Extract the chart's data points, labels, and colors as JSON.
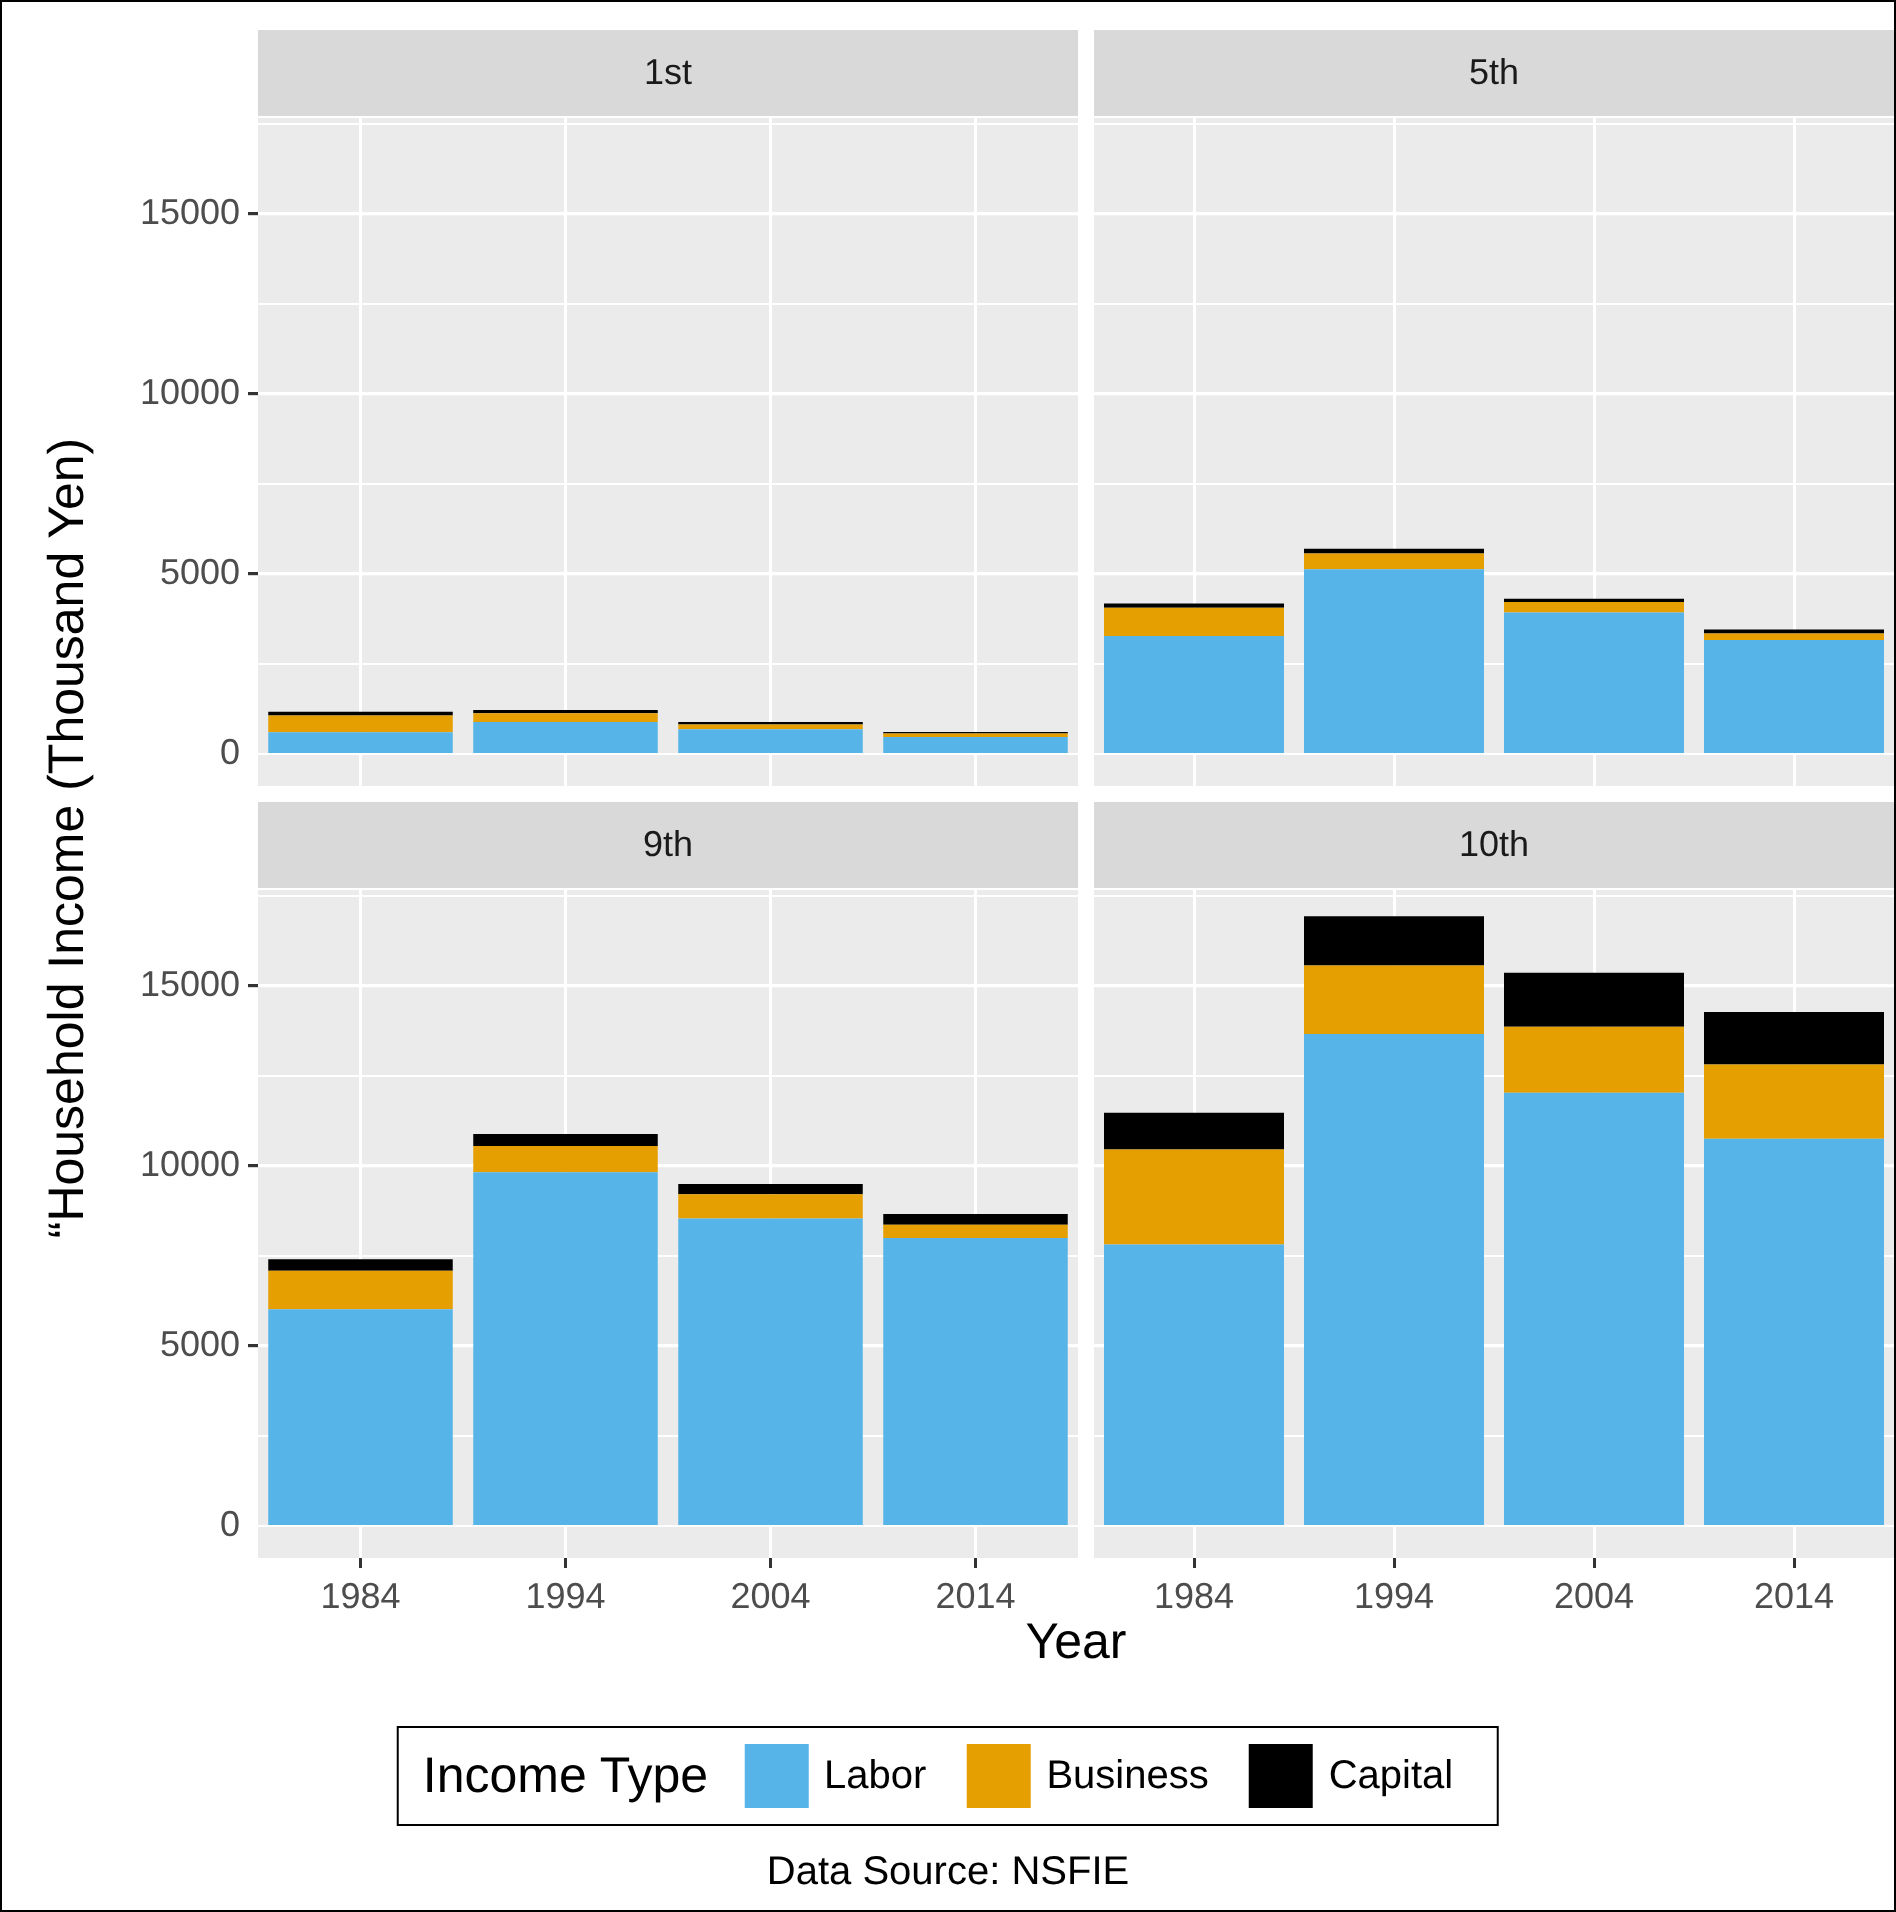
{
  "chart_data": [
    {
      "type": "bar",
      "title": "1st",
      "stacked": true,
      "categories": [
        "1984",
        "1994",
        "2004",
        "2014"
      ],
      "ylim": [
        -890,
        17670
      ],
      "yticks": [
        0,
        {
          "value": 2500,
          "label": null
        },
        5000,
        {
          "value": 7500,
          "label": null
        },
        10000,
        {
          "value": 12500,
          "label": null
        },
        15000,
        {
          "value": 17500,
          "label": null
        }
      ],
      "grid": true,
      "tick_labels": "y",
      "ylabel": "“Household Income (Thousand Yen)",
      "xlabel": "Year",
      "legend": "bottom",
      "legend_title": "Income Type",
      "annotations": [
        "Data Source: NSFIE"
      ],
      "series": [
        {
          "name": "Labor",
          "color": "#56b4e9",
          "values": [
            600,
            890,
            690,
            470
          ]
        },
        {
          "name": "Business",
          "color": "#e69f00",
          "values": [
            470,
            240,
            130,
            100
          ]
        },
        {
          "name": "Capital",
          "color": "#000000",
          "values": [
            100,
            90,
            70,
            40
          ]
        }
      ]
    },
    {
      "type": "bar",
      "title": "5th",
      "stacked": true,
      "categories": [
        "1984",
        "1994",
        "2004",
        "2014"
      ],
      "ylim": [
        -890,
        17670
      ],
      "yticks": [
        0,
        {
          "value": 2500,
          "label": null
        },
        5000,
        {
          "value": 7500,
          "label": null
        },
        10000,
        {
          "value": 12500,
          "label": null
        },
        15000,
        {
          "value": 17500,
          "label": null
        }
      ],
      "grid": true,
      "tick_labels": false,
      "series": [
        {
          "color": "#56b4e9",
          "values": [
            3280,
            5130,
            3930,
            3170
          ]
        },
        {
          "color": "#e69f00",
          "values": [
            780,
            440,
            290,
            180
          ]
        },
        {
          "color": "#000000",
          "values": [
            120,
            130,
            90,
            110
          ]
        }
      ]
    },
    {
      "type": "bar",
      "title": "9th",
      "stacked": true,
      "categories": [
        "1984",
        "1994",
        "2004",
        "2014"
      ],
      "ylim": [
        -890,
        17670
      ],
      "yticks": [
        0,
        {
          "value": 2500,
          "label": null
        },
        5000,
        {
          "value": 7500,
          "label": null
        },
        10000,
        {
          "value": 12500,
          "label": null
        },
        15000,
        {
          "value": 17500,
          "label": null
        }
      ],
      "grid": true,
      "series": [
        {
          "color": "#56b4e9",
          "values": [
            6020,
            9830,
            8540,
            8000
          ]
        },
        {
          "color": "#e69f00",
          "values": [
            1070,
            730,
            680,
            370
          ]
        },
        {
          "color": "#000000",
          "values": [
            320,
            330,
            280,
            300
          ]
        }
      ]
    },
    {
      "type": "bar",
      "title": "10th",
      "stacked": true,
      "categories": [
        "1984",
        "1994",
        "2004",
        "2014"
      ],
      "ylim": [
        -890,
        17670
      ],
      "yticks": [
        0,
        {
          "value": 2500,
          "label": null
        },
        5000,
        {
          "value": 7500,
          "label": null
        },
        10000,
        {
          "value": 12500,
          "label": null
        },
        15000,
        {
          "value": 17500,
          "label": null
        }
      ],
      "grid": true,
      "tick_labels": "x",
      "series": [
        {
          "color": "#56b4e9",
          "values": [
            7820,
            13670,
            12040,
            10760
          ]
        },
        {
          "color": "#e69f00",
          "values": [
            2640,
            1900,
            1830,
            2060
          ]
        },
        {
          "color": "#000000",
          "values": [
            1020,
            1370,
            1500,
            1460
          ]
        }
      ]
    }
  ]
}
